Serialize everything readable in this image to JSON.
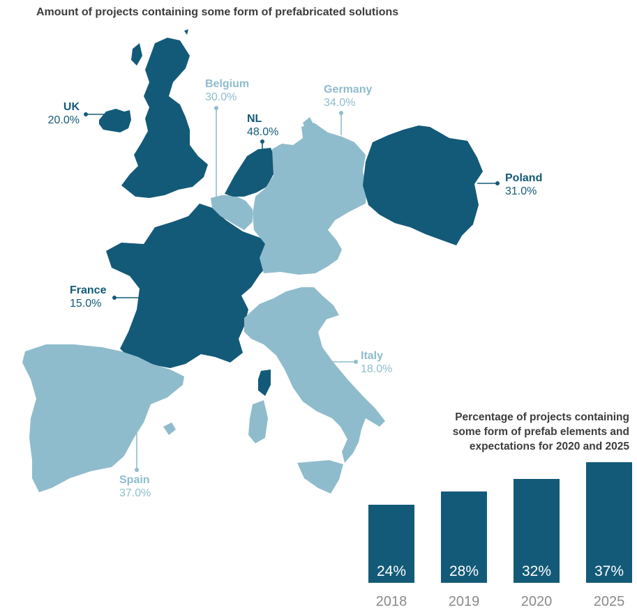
{
  "map_title": "Amount of projects containing some form of prefabricated solutions",
  "colors": {
    "dark": "#135a78",
    "light": "#8fbccc"
  },
  "countries": [
    {
      "id": "uk",
      "name": "UK",
      "value": "20.0%",
      "shade": "dark"
    },
    {
      "id": "belgium",
      "name": "Belgium",
      "value": "30.0%",
      "shade": "light"
    },
    {
      "id": "nl",
      "name": "NL",
      "value": "48.0%",
      "shade": "dark"
    },
    {
      "id": "germany",
      "name": "Germany",
      "value": "34.0%",
      "shade": "light"
    },
    {
      "id": "poland",
      "name": "Poland",
      "value": "31.0%",
      "shade": "dark"
    },
    {
      "id": "france",
      "name": "France",
      "value": "15.0%",
      "shade": "dark"
    },
    {
      "id": "italy",
      "name": "Italy",
      "value": "18.0%",
      "shade": "light"
    },
    {
      "id": "spain",
      "name": "Spain",
      "value": "37.0%",
      "shade": "light"
    }
  ],
  "bar_title_lines": [
    "Percentage of projects containing",
    "some form of prefab elements and",
    "expectations for 2020 and 2025"
  ],
  "chart_data": [
    {
      "type": "map",
      "title": "Amount of projects containing some form of prefabricated solutions",
      "categories": [
        "UK",
        "Belgium",
        "NL",
        "Germany",
        "Poland",
        "France",
        "Italy",
        "Spain"
      ],
      "values": [
        20.0,
        30.0,
        48.0,
        34.0,
        31.0,
        15.0,
        18.0,
        37.0
      ],
      "unit": "%"
    },
    {
      "type": "bar",
      "title": "Percentage of projects containing some form of prefab elements and expectations for 2020 and 2025",
      "categories": [
        "2018",
        "2019",
        "2020",
        "2025"
      ],
      "values": [
        24,
        28,
        32,
        37
      ],
      "labels": [
        "24%",
        "28%",
        "32%",
        "37%"
      ],
      "unit": "%",
      "xlabel": "",
      "ylabel": "",
      "color": "#135a78",
      "axis_visible": false,
      "grid": false
    }
  ]
}
